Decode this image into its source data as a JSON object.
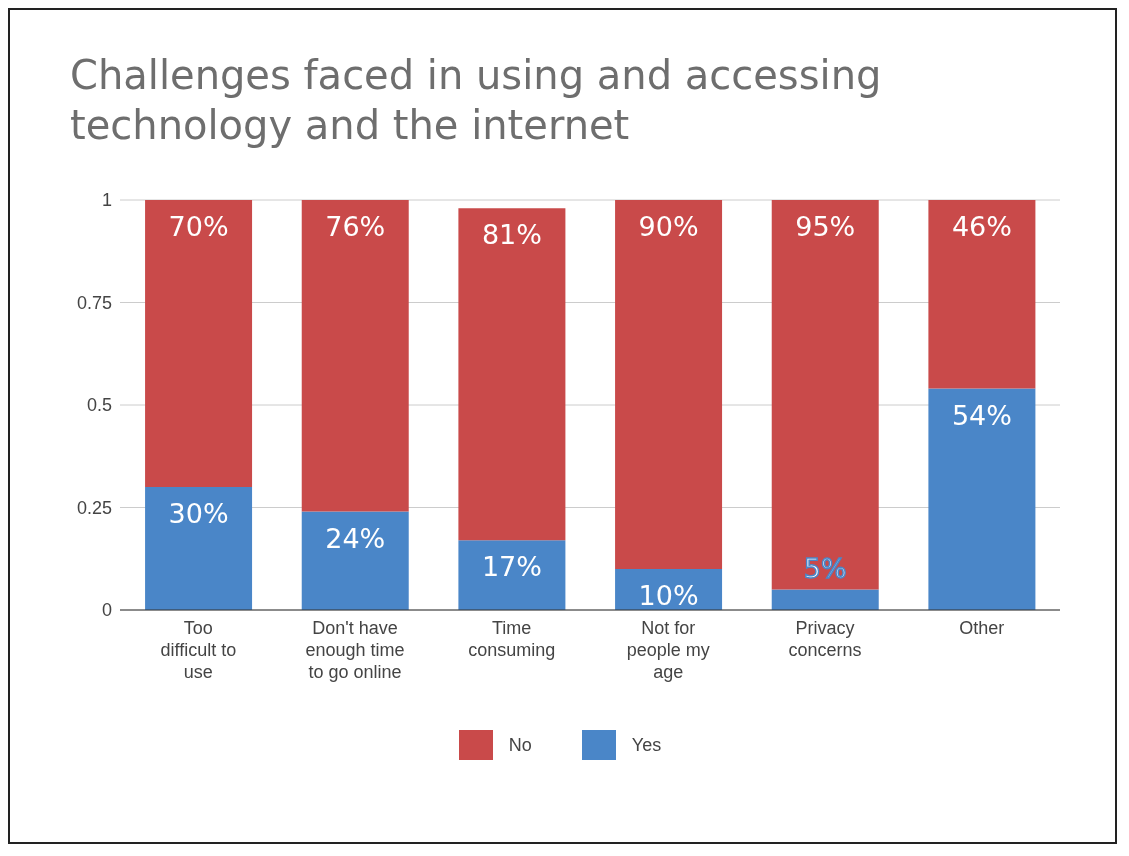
{
  "chart_data": {
    "type": "bar",
    "title": "Challenges faced in using and accessing technology and the internet",
    "categories": [
      "Too difficult to use",
      "Don't have enough time to go online",
      "Time consuming",
      "Not for people my age",
      "Privacy concerns",
      "Other"
    ],
    "stacked": true,
    "series": [
      {
        "name": "Yes",
        "color": "#4a86c8",
        "values": [
          0.3,
          0.24,
          0.17,
          0.1,
          0.05,
          0.54
        ],
        "value_labels": [
          "30%",
          "24%",
          "17%",
          "10%",
          "5%",
          "54%"
        ]
      },
      {
        "name": "No",
        "color": "#c94a4a",
        "values": [
          0.7,
          0.76,
          0.81,
          0.9,
          0.95,
          0.46
        ],
        "value_labels": [
          "70%",
          "76%",
          "81%",
          "90%",
          "95%",
          "46%"
        ]
      }
    ],
    "ylim": [
      0,
      1
    ],
    "yticks": [
      0,
      0.25,
      0.5,
      0.75,
      1
    ],
    "grid": "y",
    "legend": "bottom"
  }
}
